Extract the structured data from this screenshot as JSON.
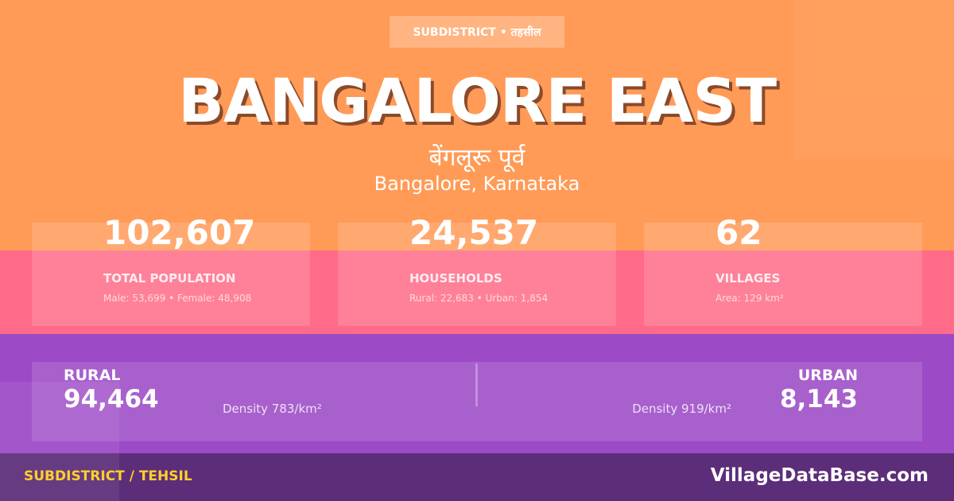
{
  "badge": "SUBDISTRICT • तहसील",
  "title": "BANGALORE EAST",
  "title_hindi": "बेंगलूरू पूर्व",
  "location": "Bangalore, Karnataka",
  "stats": [
    {
      "value": "102,607",
      "label": "TOTAL POPULATION",
      "sub": "Male: 53,699 • Female: 48,908"
    },
    {
      "value": "24,537",
      "label": "HOUSEHOLDS",
      "sub": "Rural: 22,683 • Urban: 1,854"
    },
    {
      "value": "62",
      "label": "VILLAGES",
      "sub": "Area: 129 km²"
    }
  ],
  "rural": {
    "label": "RURAL",
    "value": "94,464",
    "density": "Density 783/km²"
  },
  "urban": {
    "label": "URBAN",
    "value": "8,143",
    "density": "Density 919/km²"
  },
  "footer": {
    "category": "SUBDISTRICT / TEHSIL",
    "brand": "VillageDataBase.com"
  },
  "colors": {
    "orange": "#FF9B57",
    "pink": "#FF6B88",
    "purple": "#9C4AC6",
    "footer": "#5C2D78",
    "accent": "#FFD02A"
  }
}
